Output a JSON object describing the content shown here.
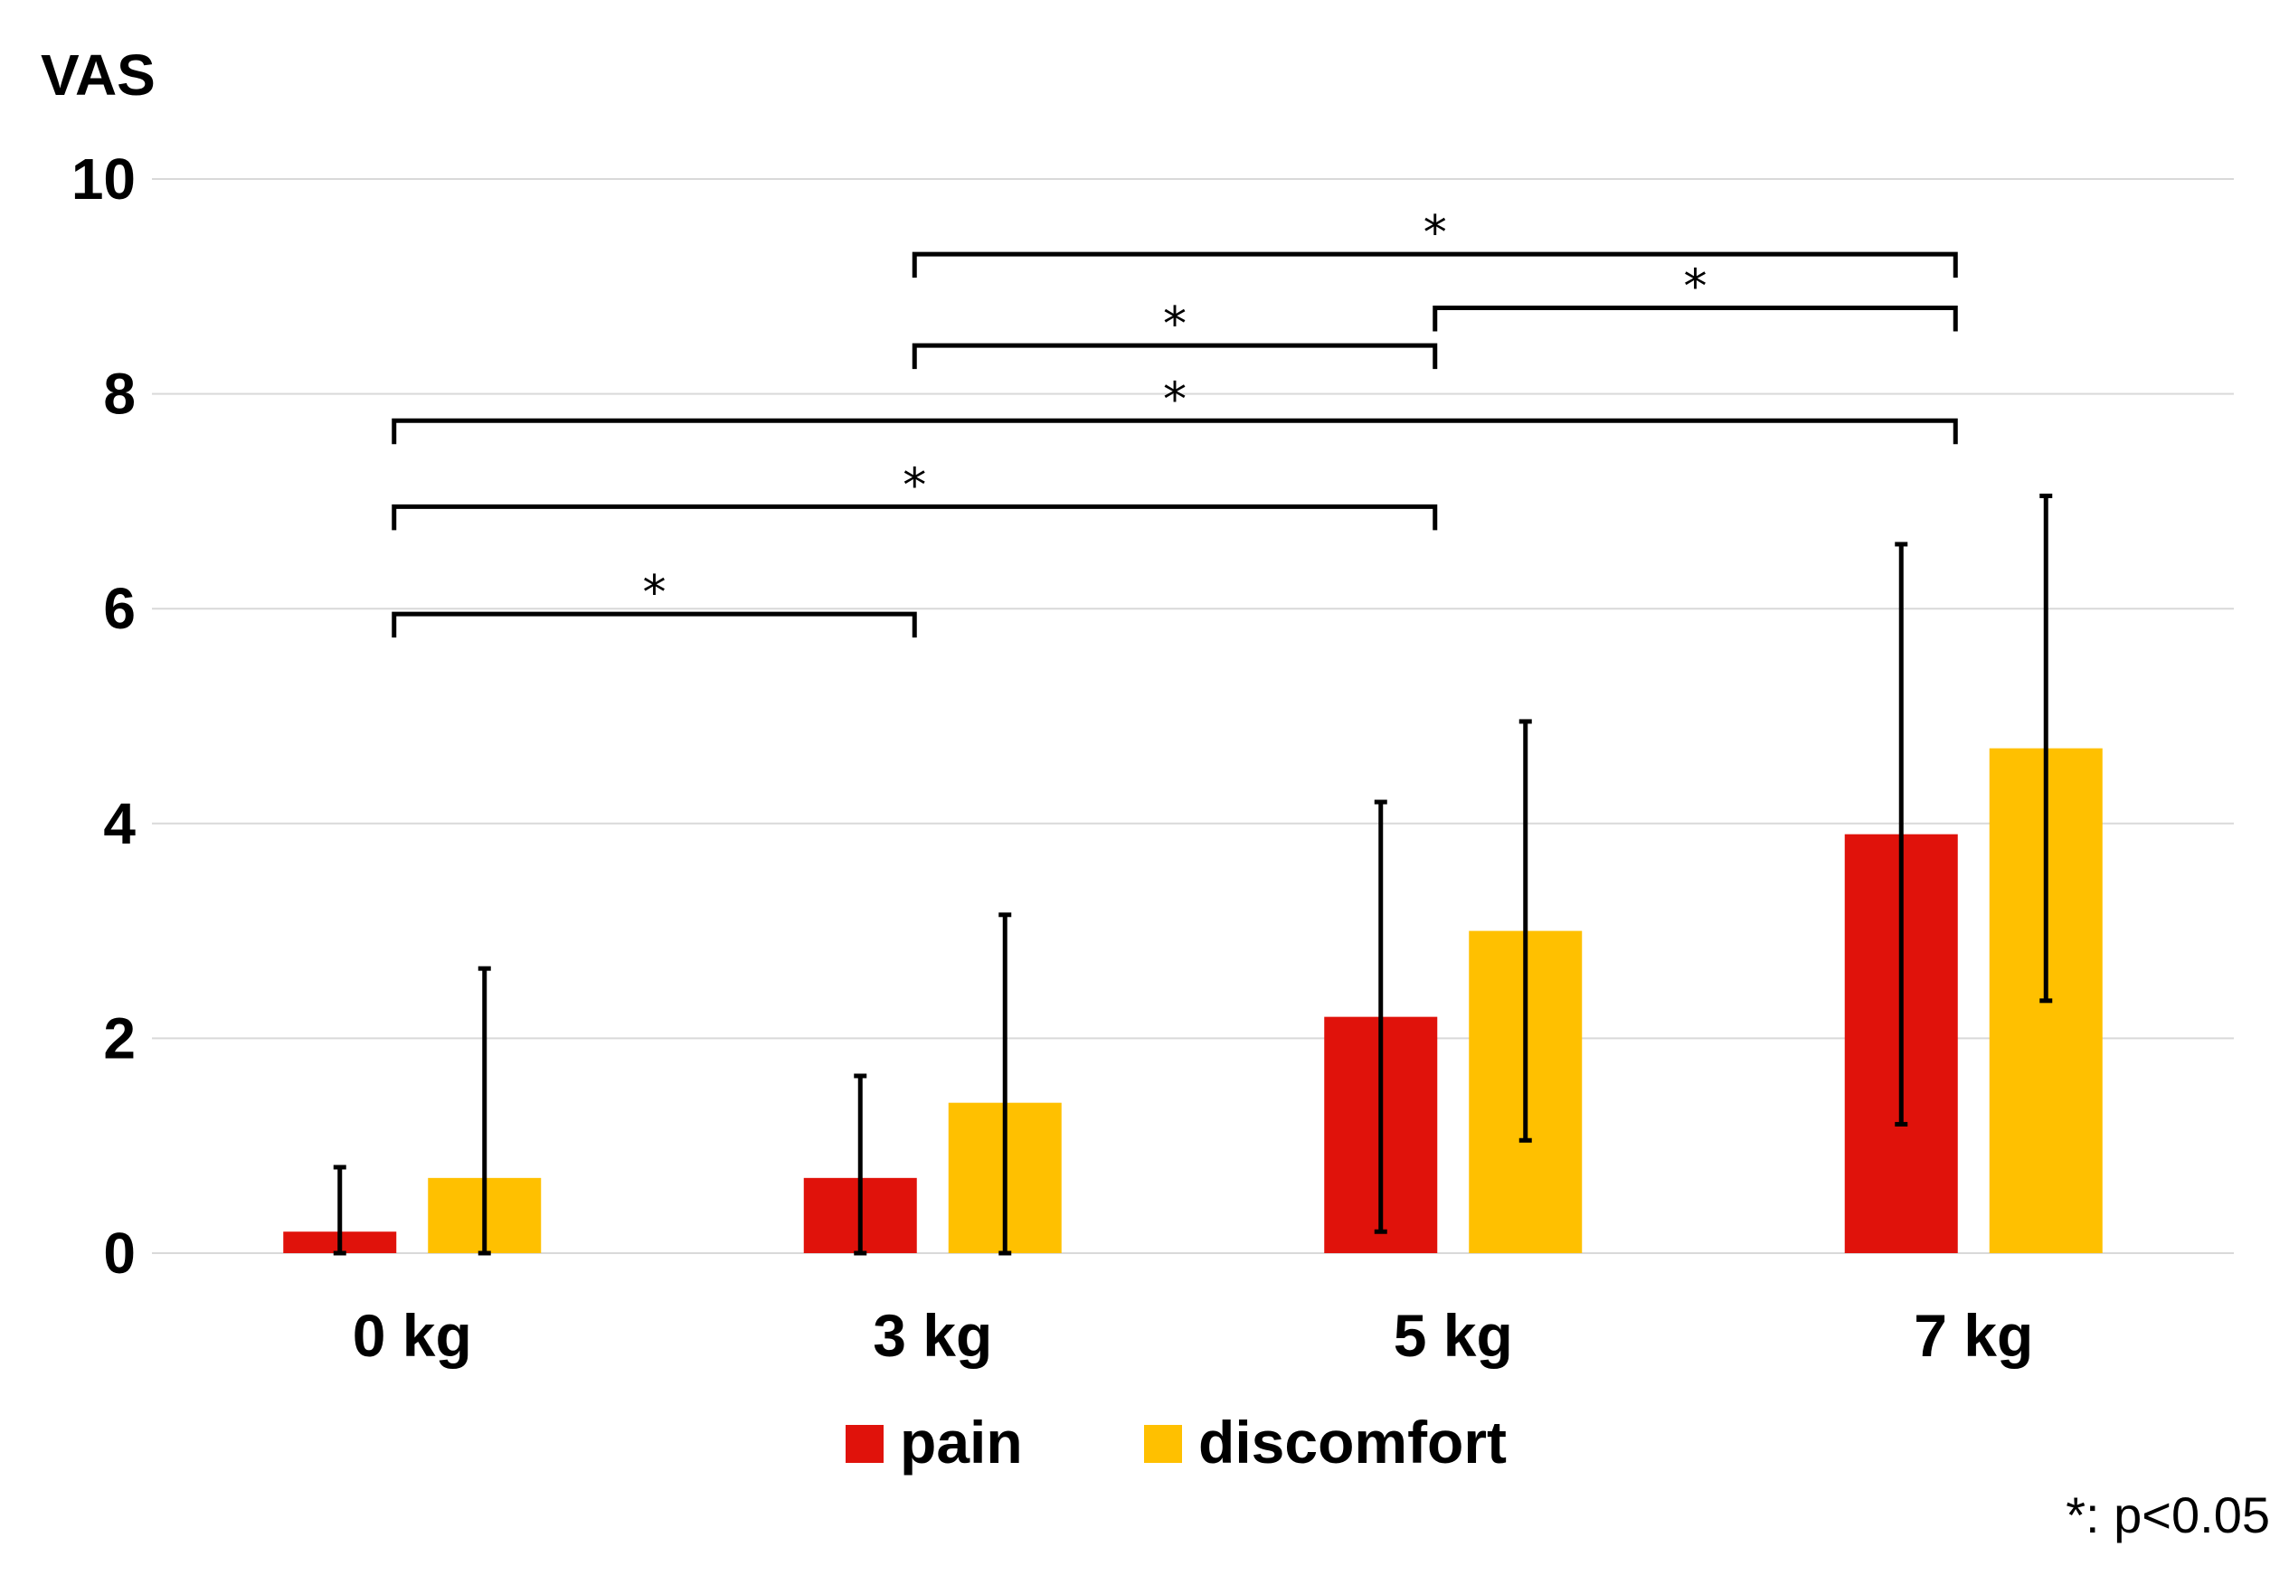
{
  "chart_data": {
    "type": "bar",
    "ylabel": "VAS",
    "ylim": [
      0,
      10
    ],
    "yticks": [
      "0",
      "2",
      "4",
      "6",
      "8",
      "10"
    ],
    "categories": [
      "0 kg",
      "3 kg",
      "5 kg",
      "7 kg"
    ],
    "series": [
      {
        "name": "pain",
        "color": "#e0120b",
        "values": [
          0.2,
          0.7,
          2.2,
          3.9
        ],
        "error": [
          0.6,
          0.95,
          2.0,
          2.7
        ]
      },
      {
        "name": "discomfort",
        "color": "#ffc000",
        "values": [
          0.7,
          1.4,
          3.0,
          4.7
        ],
        "error": [
          1.95,
          1.75,
          1.95,
          2.35
        ]
      }
    ],
    "grid": true,
    "legend_position": "bottom",
    "significance": [
      {
        "from": "0 kg",
        "to": "3 kg",
        "label": "*",
        "level": 5.95
      },
      {
        "from": "0 kg",
        "to": "5 kg",
        "label": "*",
        "level": 6.95
      },
      {
        "from": "0 kg",
        "to": "7 kg",
        "label": "*",
        "level": 7.75
      },
      {
        "from": "3 kg",
        "to": "5 kg",
        "label": "*",
        "level": 8.45
      },
      {
        "from": "5 kg",
        "to": "7 kg",
        "label": "*",
        "level": 8.8
      },
      {
        "from": "3 kg",
        "to": "7 kg",
        "label": "*",
        "level": 9.3
      }
    ],
    "note": "*: p<0.05"
  }
}
